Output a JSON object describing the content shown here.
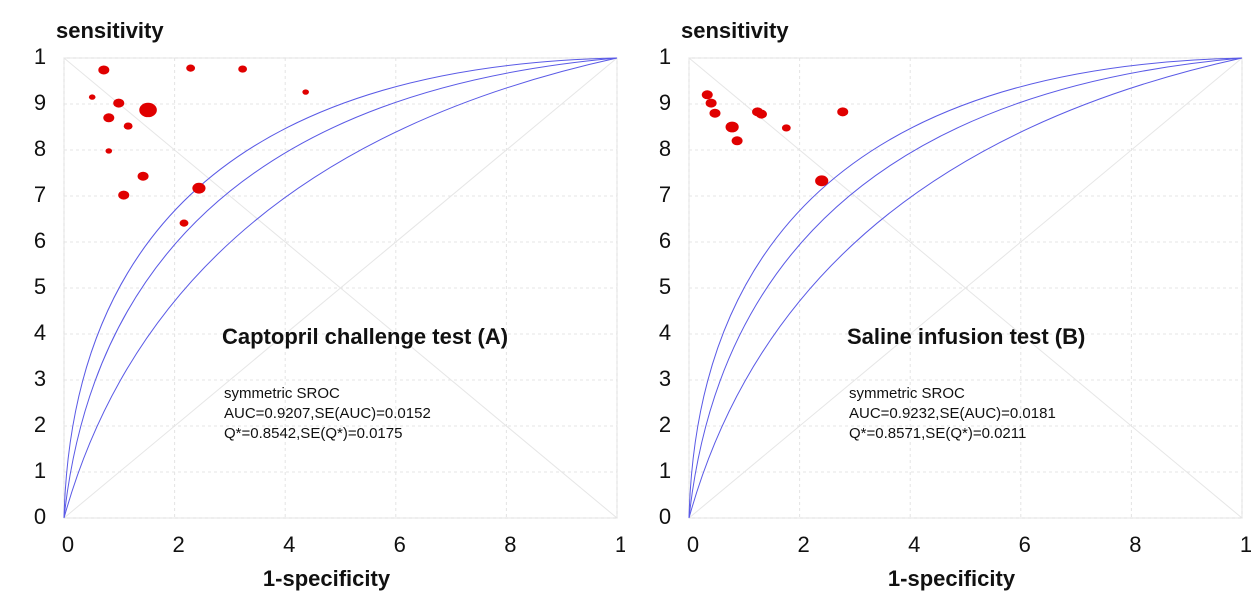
{
  "chart_data": [
    {
      "type": "scatter",
      "y_label": "sensitivity",
      "x_label": "1-specificity",
      "annotation": "Captopril challenge test (A)",
      "stats": [
        "symmetric SROC",
        "AUC=0.9207,SE(AUC)=0.0152",
        "Q*=0.8542,SE(Q*)=0.0175"
      ],
      "color": "#e00000",
      "grid": true,
      "xlim": [
        0,
        1
      ],
      "ylim": [
        0,
        1
      ],
      "xticks": [
        0,
        {
          "value": 0.2,
          "label": "2"
        },
        {
          "value": 0.4,
          "label": "4"
        },
        {
          "value": 0.6,
          "label": "6"
        },
        {
          "value": 0.8,
          "label": "8"
        },
        1
      ],
      "yticks": [
        0,
        {
          "value": 0.1,
          "label": "1"
        },
        {
          "value": 0.2,
          "label": "2"
        },
        {
          "value": 0.3,
          "label": "3"
        },
        {
          "value": 0.4,
          "label": "4"
        },
        {
          "value": 0.5,
          "label": "5"
        },
        {
          "value": 0.6,
          "label": "6"
        },
        {
          "value": 0.7,
          "label": "7"
        },
        {
          "value": 0.8,
          "label": "8"
        },
        {
          "value": 0.9,
          "label": "9"
        },
        1
      ],
      "x": [
        0.072,
        0.051,
        0.099,
        0.081,
        0.116,
        0.152,
        0.081,
        0.229,
        0.323,
        0.437,
        0.143,
        0.108,
        0.244,
        0.217
      ],
      "values": [
        0.974,
        0.915,
        0.902,
        0.87,
        0.852,
        0.887,
        0.798,
        0.978,
        0.976,
        0.926,
        0.743,
        0.702,
        0.717,
        0.641
      ],
      "sizes": [
        5,
        3,
        5,
        5,
        4,
        8,
        3,
        4,
        4,
        3,
        5,
        5,
        6,
        4
      ]
    },
    {
      "type": "scatter",
      "y_label": "sensitivity",
      "x_label": "1-specificity",
      "annotation": "Saline infusion test (B)",
      "stats": [
        "symmetric SROC",
        "AUC=0.9232,SE(AUC)=0.0181",
        "Q*=0.8571,SE(Q*)=0.0211"
      ],
      "color": "#e00000",
      "grid": true,
      "xlim": [
        0,
        1
      ],
      "ylim": [
        0,
        1
      ],
      "xticks": [
        0,
        {
          "value": 0.2,
          "label": "2"
        },
        {
          "value": 0.4,
          "label": "4"
        },
        {
          "value": 0.6,
          "label": "6"
        },
        {
          "value": 0.8,
          "label": "8"
        },
        1
      ],
      "yticks": [
        0,
        {
          "value": 0.1,
          "label": "1"
        },
        {
          "value": 0.2,
          "label": "2"
        },
        {
          "value": 0.3,
          "label": "3"
        },
        {
          "value": 0.4,
          "label": "4"
        },
        {
          "value": 0.5,
          "label": "5"
        },
        {
          "value": 0.6,
          "label": "6"
        },
        {
          "value": 0.7,
          "label": "7"
        },
        {
          "value": 0.8,
          "label": "8"
        },
        {
          "value": 0.9,
          "label": "9"
        },
        1
      ],
      "x": [
        0.033,
        0.04,
        0.047,
        0.078,
        0.087,
        0.124,
        0.131,
        0.176,
        0.278,
        0.24
      ],
      "values": [
        0.92,
        0.902,
        0.88,
        0.85,
        0.82,
        0.883,
        0.878,
        0.848,
        0.883,
        0.733
      ],
      "sizes": [
        5,
        5,
        5,
        6,
        5,
        5,
        5,
        4,
        5,
        6
      ]
    }
  ]
}
